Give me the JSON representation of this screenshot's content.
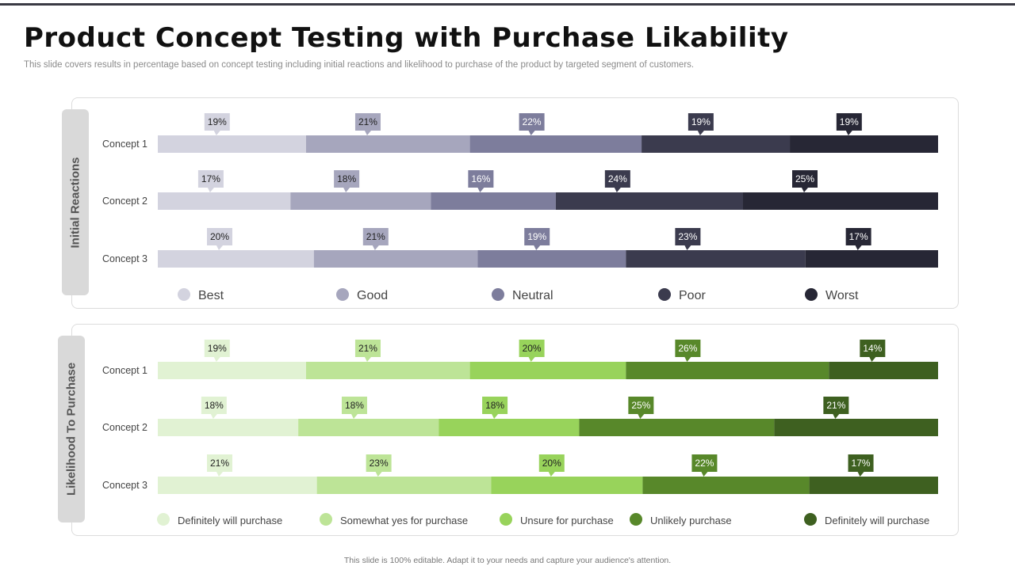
{
  "slide": {
    "title": "Product Concept Testing with Purchase Likability",
    "subtitle": "This slide covers results in percentage based on concept testing including initial reactions and likelihood to purchase of the product by targeted segment of customers.",
    "footer": "This slide is 100% editable. Adapt it to your needs and capture your audience's attention."
  },
  "chart_data": [
    {
      "type": "bar",
      "orientation": "horizontal-stacked",
      "title": "Initial Reactions",
      "categories": [
        "Concept 1",
        "Concept 2",
        "Concept 3"
      ],
      "series": [
        {
          "name": "Best",
          "color": "#d3d3df",
          "values": [
            19,
            17,
            20
          ]
        },
        {
          "name": "Good",
          "color": "#a6a6bd",
          "values": [
            21,
            18,
            21
          ]
        },
        {
          "name": "Neutral",
          "color": "#7d7d9c",
          "values": [
            22,
            16,
            19
          ]
        },
        {
          "name": "Poor",
          "color": "#3b3b4e",
          "values": [
            19,
            24,
            23
          ]
        },
        {
          "name": "Worst",
          "color": "#272735",
          "values": [
            19,
            25,
            17
          ]
        }
      ],
      "legend_position": "bottom"
    },
    {
      "type": "bar",
      "orientation": "horizontal-stacked",
      "title": "Likelihood To Purchase",
      "categories": [
        "Concept 1",
        "Concept 2",
        "Concept 3"
      ],
      "series": [
        {
          "name": "Definitely will purchase",
          "color": "#e1f2d3",
          "values": [
            19,
            18,
            21
          ]
        },
        {
          "name": "Somewhat yes for purchase",
          "color": "#bde497",
          "values": [
            21,
            18,
            23
          ]
        },
        {
          "name": "Unsure for purchase",
          "color": "#98d35b",
          "values": [
            20,
            18,
            20
          ]
        },
        {
          "name": "Unlikely purchase",
          "color": "#58882a",
          "values": [
            26,
            25,
            22
          ]
        },
        {
          "name": "Definitely will purchase",
          "color": "#3e6020",
          "values": [
            14,
            21,
            17
          ]
        }
      ],
      "legend_position": "bottom"
    }
  ]
}
